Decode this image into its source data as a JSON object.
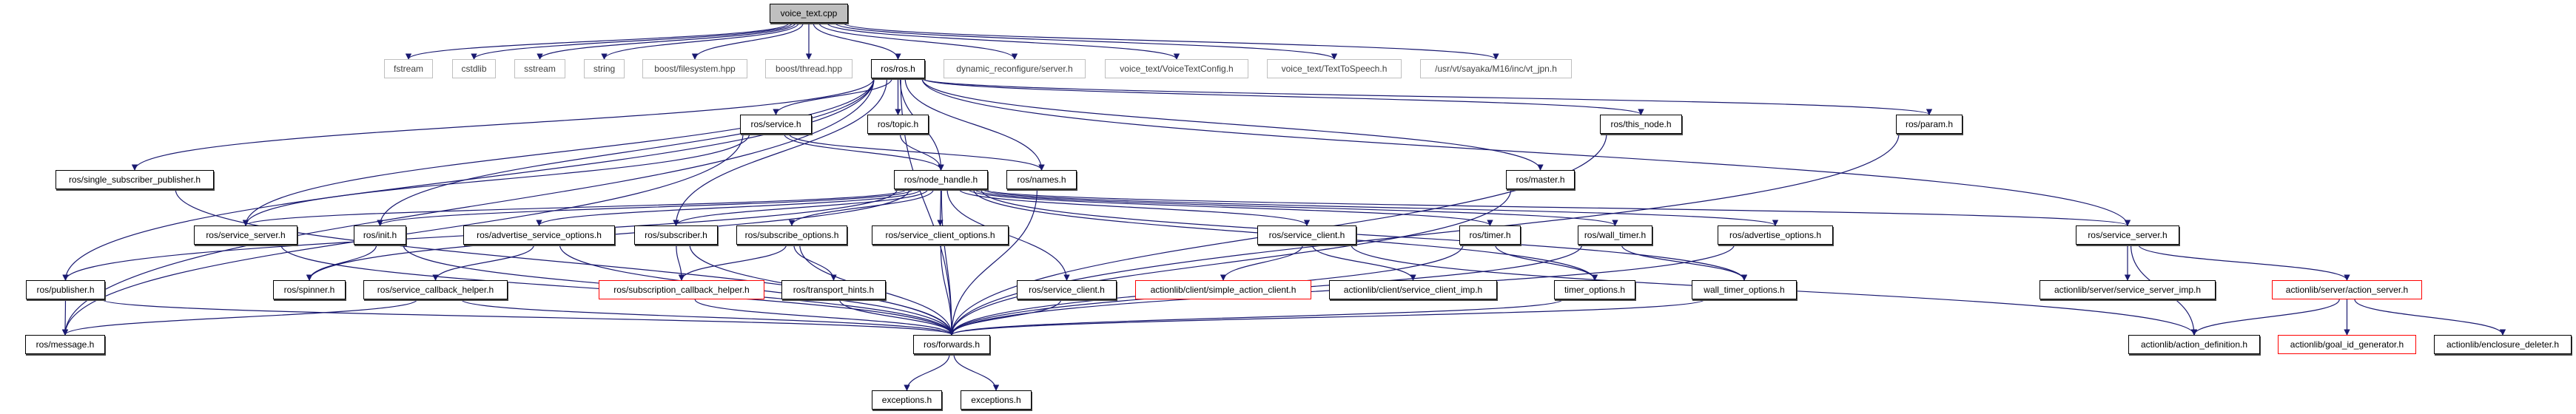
{
  "colors": {
    "edge": "#191970",
    "missing_border": "#ff0000",
    "external_border": "#bfbfbf",
    "root_fill": "#bfbfbf"
  },
  "nodes": [
    {
      "id": "root",
      "label": "voice_text.cpp",
      "style": "root"
    },
    {
      "id": "fstream",
      "label": "fstream",
      "style": "external"
    },
    {
      "id": "cstdlib",
      "label": "cstdlib",
      "style": "external"
    },
    {
      "id": "sstream",
      "label": "sstream",
      "style": "external"
    },
    {
      "id": "string",
      "label": "string",
      "style": "external"
    },
    {
      "id": "bfs",
      "label": "boost/filesystem.hpp",
      "style": "external"
    },
    {
      "id": "bthread",
      "label": "boost/thread.hpp",
      "style": "external"
    },
    {
      "id": "ros",
      "label": "ros/ros.h",
      "style": "normal"
    },
    {
      "id": "dynrec",
      "label": "dynamic_reconfigure/server.h",
      "style": "external"
    },
    {
      "id": "vtconfig",
      "label": "voice_text/VoiceTextConfig.h",
      "style": "external"
    },
    {
      "id": "tts",
      "label": "voice_text/TextToSpeech.h",
      "style": "external"
    },
    {
      "id": "vtjpn",
      "label": "/usr/vt/sayaka/M16/inc/vt_jpn.h",
      "style": "external"
    },
    {
      "id": "service",
      "label": "ros/service.h",
      "style": "normal"
    },
    {
      "id": "topic",
      "label": "ros/topic.h",
      "style": "normal"
    },
    {
      "id": "thisnode",
      "label": "ros/this_node.h",
      "style": "normal"
    },
    {
      "id": "param",
      "label": "ros/param.h",
      "style": "normal"
    },
    {
      "id": "ssp",
      "label": "ros/single_subscriber_publisher.h",
      "style": "normal"
    },
    {
      "id": "nh",
      "label": "ros/node_handle.h",
      "style": "normal"
    },
    {
      "id": "names",
      "label": "ros/names.h",
      "style": "normal"
    },
    {
      "id": "master",
      "label": "ros/master.h",
      "style": "normal"
    },
    {
      "id": "ssrva",
      "label": "ros/service_server.h",
      "style": "normal"
    },
    {
      "id": "init",
      "label": "ros/init.h",
      "style": "normal"
    },
    {
      "id": "aso",
      "label": "ros/advertise_service_options.h",
      "style": "normal"
    },
    {
      "id": "sub",
      "label": "ros/subscriber.h",
      "style": "normal"
    },
    {
      "id": "subopt",
      "label": "ros/subscribe_options.h",
      "style": "normal"
    },
    {
      "id": "sco",
      "label": "ros/service_client_options.h",
      "style": "normal"
    },
    {
      "id": "sclia",
      "label": "ros/service_client.h",
      "style": "normal"
    },
    {
      "id": "timer",
      "label": "ros/timer.h",
      "style": "normal"
    },
    {
      "id": "wtimer",
      "label": "ros/wall_timer.h",
      "style": "normal"
    },
    {
      "id": "advopt",
      "label": "ros/advertise_options.h",
      "style": "normal"
    },
    {
      "id": "ssrvb",
      "label": "ros/service_server.h",
      "style": "normal"
    },
    {
      "id": "pub",
      "label": "ros/publisher.h",
      "style": "normal"
    },
    {
      "id": "spinner",
      "label": "ros/spinner.h",
      "style": "normal"
    },
    {
      "id": "sch",
      "label": "ros/service_callback_helper.h",
      "style": "normal"
    },
    {
      "id": "subch",
      "label": "ros/subscription_callback_helper.h",
      "style": "missing"
    },
    {
      "id": "th",
      "label": "ros/transport_hints.h",
      "style": "normal"
    },
    {
      "id": "sclib",
      "label": "ros/service_client.h",
      "style": "normal"
    },
    {
      "id": "sac",
      "label": "actionlib/client/simple_action_client.h",
      "style": "missing"
    },
    {
      "id": "sci",
      "label": "actionlib/client/service_client_imp.h",
      "style": "normal"
    },
    {
      "id": "topt",
      "label": "timer_options.h",
      "style": "normal"
    },
    {
      "id": "wtopt",
      "label": "wall_timer_options.h",
      "style": "normal"
    },
    {
      "id": "ssi",
      "label": "actionlib/server/service_server_imp.h",
      "style": "normal"
    },
    {
      "id": "as",
      "label": "actionlib/server/action_server.h",
      "style": "missing"
    },
    {
      "id": "msg",
      "label": "ros/message.h",
      "style": "normal"
    },
    {
      "id": "fwd",
      "label": "ros/forwards.h",
      "style": "normal"
    },
    {
      "id": "adef",
      "label": "actionlib/action_definition.h",
      "style": "normal"
    },
    {
      "id": "goal",
      "label": "actionlib/goal_id_generator.h",
      "style": "missing"
    },
    {
      "id": "encl",
      "label": "actionlib/enclosure_deleter.h",
      "style": "normal"
    },
    {
      "id": "exa",
      "label": "exceptions.h",
      "style": "normal"
    },
    {
      "id": "exb",
      "label": "exceptions.h",
      "style": "normal"
    }
  ],
  "edges": [
    [
      "root",
      "fstream"
    ],
    [
      "root",
      "cstdlib"
    ],
    [
      "root",
      "sstream"
    ],
    [
      "root",
      "string"
    ],
    [
      "root",
      "bfs"
    ],
    [
      "root",
      "bthread"
    ],
    [
      "root",
      "ros"
    ],
    [
      "root",
      "dynrec"
    ],
    [
      "root",
      "vtconfig"
    ],
    [
      "root",
      "tts"
    ],
    [
      "root",
      "vtjpn"
    ],
    [
      "ros",
      "service"
    ],
    [
      "ros",
      "topic"
    ],
    [
      "ros",
      "thisnode"
    ],
    [
      "ros",
      "param"
    ],
    [
      "ros",
      "ssp"
    ],
    [
      "ros",
      "nh"
    ],
    [
      "ros",
      "names"
    ],
    [
      "ros",
      "master"
    ],
    [
      "ros",
      "ssrva"
    ],
    [
      "ros",
      "init"
    ],
    [
      "ros",
      "sub"
    ],
    [
      "ros",
      "ssrvb"
    ],
    [
      "ros",
      "pub"
    ],
    [
      "ros",
      "msg"
    ],
    [
      "ros",
      "fwd"
    ],
    [
      "service",
      "nh"
    ],
    [
      "service",
      "names"
    ],
    [
      "service",
      "msg"
    ],
    [
      "service",
      "ssrva"
    ],
    [
      "topic",
      "nh"
    ],
    [
      "ssp",
      "fwd"
    ],
    [
      "nh",
      "pub"
    ],
    [
      "nh",
      "ssrva"
    ],
    [
      "nh",
      "init"
    ],
    [
      "nh",
      "aso"
    ],
    [
      "nh",
      "sub"
    ],
    [
      "nh",
      "subopt"
    ],
    [
      "nh",
      "sco"
    ],
    [
      "nh",
      "sclib"
    ],
    [
      "nh",
      "spinner"
    ],
    [
      "nh",
      "fwd"
    ],
    [
      "nh",
      "sclia"
    ],
    [
      "nh",
      "timer"
    ],
    [
      "nh",
      "wtimer"
    ],
    [
      "nh",
      "advopt"
    ],
    [
      "nh",
      "ssrvb"
    ],
    [
      "nh",
      "topt"
    ],
    [
      "nh",
      "wtopt"
    ],
    [
      "names",
      "fwd"
    ],
    [
      "master",
      "fwd"
    ],
    [
      "thisnode",
      "fwd"
    ],
    [
      "param",
      "fwd"
    ],
    [
      "ssrva",
      "fwd"
    ],
    [
      "init",
      "spinner"
    ],
    [
      "init",
      "fwd"
    ],
    [
      "aso",
      "sch"
    ],
    [
      "aso",
      "fwd"
    ],
    [
      "sub",
      "subch"
    ],
    [
      "sub",
      "fwd"
    ],
    [
      "subopt",
      "subch"
    ],
    [
      "subopt",
      "th"
    ],
    [
      "subopt",
      "fwd"
    ],
    [
      "sco",
      "fwd"
    ],
    [
      "sclia",
      "sac"
    ],
    [
      "sclia",
      "sci"
    ],
    [
      "sclia",
      "adef"
    ],
    [
      "timer",
      "topt"
    ],
    [
      "timer",
      "fwd"
    ],
    [
      "wtimer",
      "wtopt"
    ],
    [
      "wtimer",
      "fwd"
    ],
    [
      "advopt",
      "fwd"
    ],
    [
      "ssrvb",
      "ssi"
    ],
    [
      "ssrvb",
      "as"
    ],
    [
      "ssrvb",
      "adef"
    ],
    [
      "pub",
      "msg"
    ],
    [
      "pub",
      "fwd"
    ],
    [
      "sch",
      "msg"
    ],
    [
      "sch",
      "fwd"
    ],
    [
      "subch",
      "fwd"
    ],
    [
      "th",
      "fwd"
    ],
    [
      "sclib",
      "fwd"
    ],
    [
      "topt",
      "fwd"
    ],
    [
      "wtopt",
      "fwd"
    ],
    [
      "as",
      "adef"
    ],
    [
      "as",
      "goal"
    ],
    [
      "as",
      "encl"
    ],
    [
      "fwd",
      "exa"
    ],
    [
      "fwd",
      "exb"
    ]
  ]
}
